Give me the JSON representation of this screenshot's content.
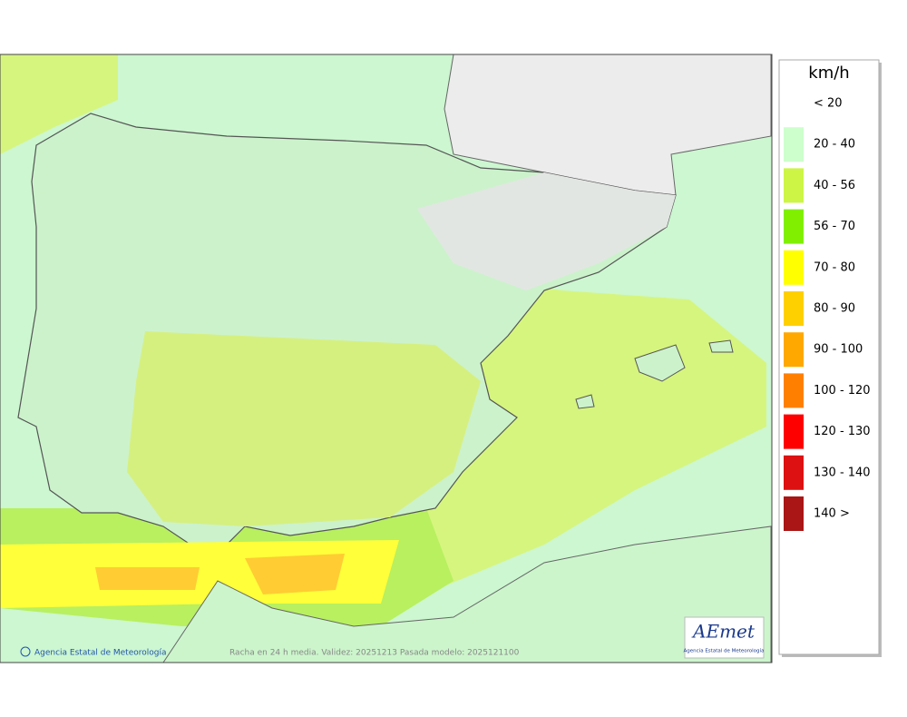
{
  "legend": {
    "title": "km/h",
    "items": [
      {
        "label": "< 20"
      },
      {
        "label": "20 - 40",
        "color": "#ccffcc"
      },
      {
        "label": "40 - 56",
        "color": "#ccf545"
      },
      {
        "label": "56 - 70",
        "color": "#80f000"
      },
      {
        "label": "70 - 80",
        "color": "#ffff00"
      },
      {
        "label": "80 - 90",
        "color": "#ffd000"
      },
      {
        "label": "90 - 100",
        "color": "#ffa800"
      },
      {
        "label": "100 - 120",
        "color": "#ff8000"
      },
      {
        "label": "120 - 130",
        "color": "#ff0000"
      },
      {
        "label": "130 - 140",
        "color": "#dd1111"
      },
      {
        "label": "140 >",
        "color": "#aa1515"
      }
    ]
  },
  "footer": {
    "credit": "Agencia Estatal de Meteorología",
    "caption": "Racha en 24 h media. Validez: 20251213 Pasada modelo: 2025121100"
  },
  "logo": {
    "name": "AEmet",
    "subtitle": "Agencia Estatal de Meteorología"
  }
}
